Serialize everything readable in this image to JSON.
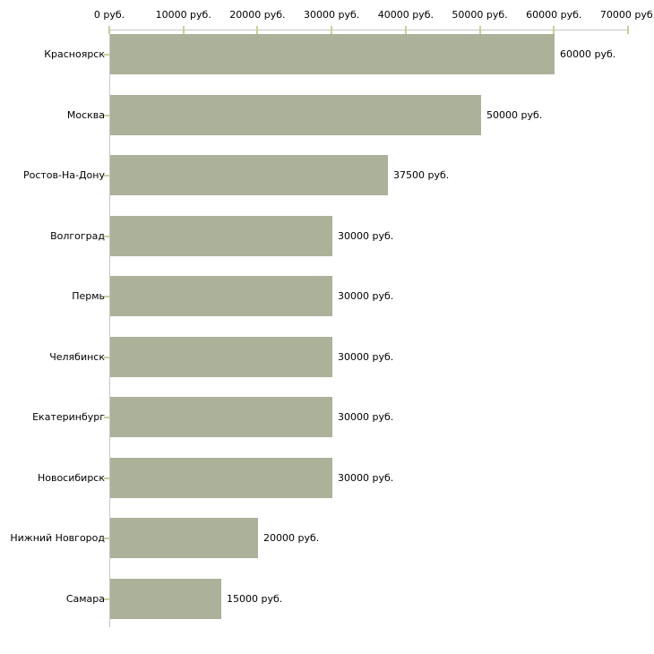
{
  "chart_data": {
    "type": "bar",
    "orientation": "horizontal",
    "title": "",
    "categories": [
      "Красноярск",
      "Москва",
      "Ростов-На-Дону",
      "Волгоград",
      "Пермь",
      "Челябинск",
      "Екатеринбург",
      "Новосибирск",
      "Нижний Новгород",
      "Самара"
    ],
    "values": [
      60000,
      50000,
      37500,
      30000,
      30000,
      30000,
      30000,
      30000,
      20000,
      15000
    ],
    "value_labels": [
      "60000 руб.",
      "50000 руб.",
      "37500 руб.",
      "30000 руб.",
      "30000 руб.",
      "30000 руб.",
      "30000 руб.",
      "30000 руб.",
      "20000 руб.",
      "15000 руб."
    ],
    "unit": "руб.",
    "x_axis": {
      "position": "top",
      "range": [
        0,
        70000
      ],
      "ticks": [
        0,
        10000,
        20000,
        30000,
        40000,
        50000,
        60000,
        70000
      ],
      "tick_labels": [
        "0 руб.",
        "10000 руб.",
        "20000 руб.",
        "30000 руб.",
        "40000 руб.",
        "50000 руб.",
        "60000 руб.",
        "70000 руб."
      ]
    },
    "grid": false,
    "legend": false,
    "colors": {
      "bar": "#abb299",
      "axis_line": "#c6c6c6",
      "tick_mark": "#cccc99",
      "text": "#000000",
      "background": "#ffffff"
    }
  }
}
